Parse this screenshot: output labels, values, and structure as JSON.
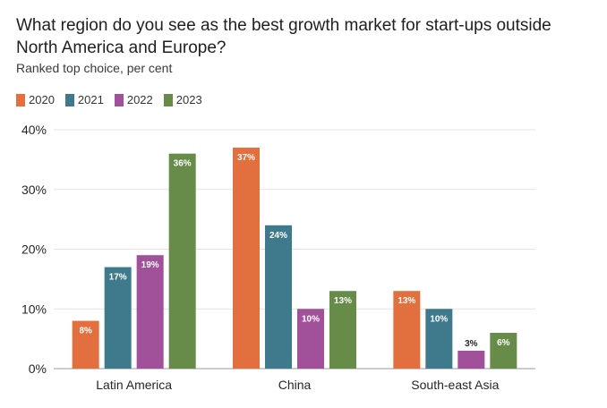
{
  "chart_data": {
    "type": "bar",
    "title": "What region do you see as the best growth market for start-ups outside North America and Europe?",
    "subtitle": "Ranked top choice, per cent",
    "categories": [
      "Latin America",
      "China",
      "South-east Asia"
    ],
    "series": [
      {
        "name": "2020",
        "color": "#e2703f",
        "values": [
          8,
          37,
          13
        ]
      },
      {
        "name": "2021",
        "color": "#3f7a8c",
        "values": [
          17,
          24,
          10
        ]
      },
      {
        "name": "2022",
        "color": "#a0519a",
        "values": [
          19,
          10,
          3
        ]
      },
      {
        "name": "2023",
        "color": "#678c4a",
        "values": [
          36,
          13,
          6
        ]
      }
    ],
    "data_labels": [
      [
        "8%",
        "37%",
        "13%"
      ],
      [
        "17%",
        "24%",
        "10%"
      ],
      [
        "19%",
        "10%",
        "3%"
      ],
      [
        "36%",
        "13%",
        "6%"
      ]
    ],
    "ylim": [
      0,
      40
    ],
    "yticks": [
      0,
      10,
      20,
      30,
      40
    ],
    "ytick_labels": [
      "0%",
      "10%",
      "20%",
      "30%",
      "40%"
    ],
    "grid": true,
    "legend_position": "top-left"
  }
}
